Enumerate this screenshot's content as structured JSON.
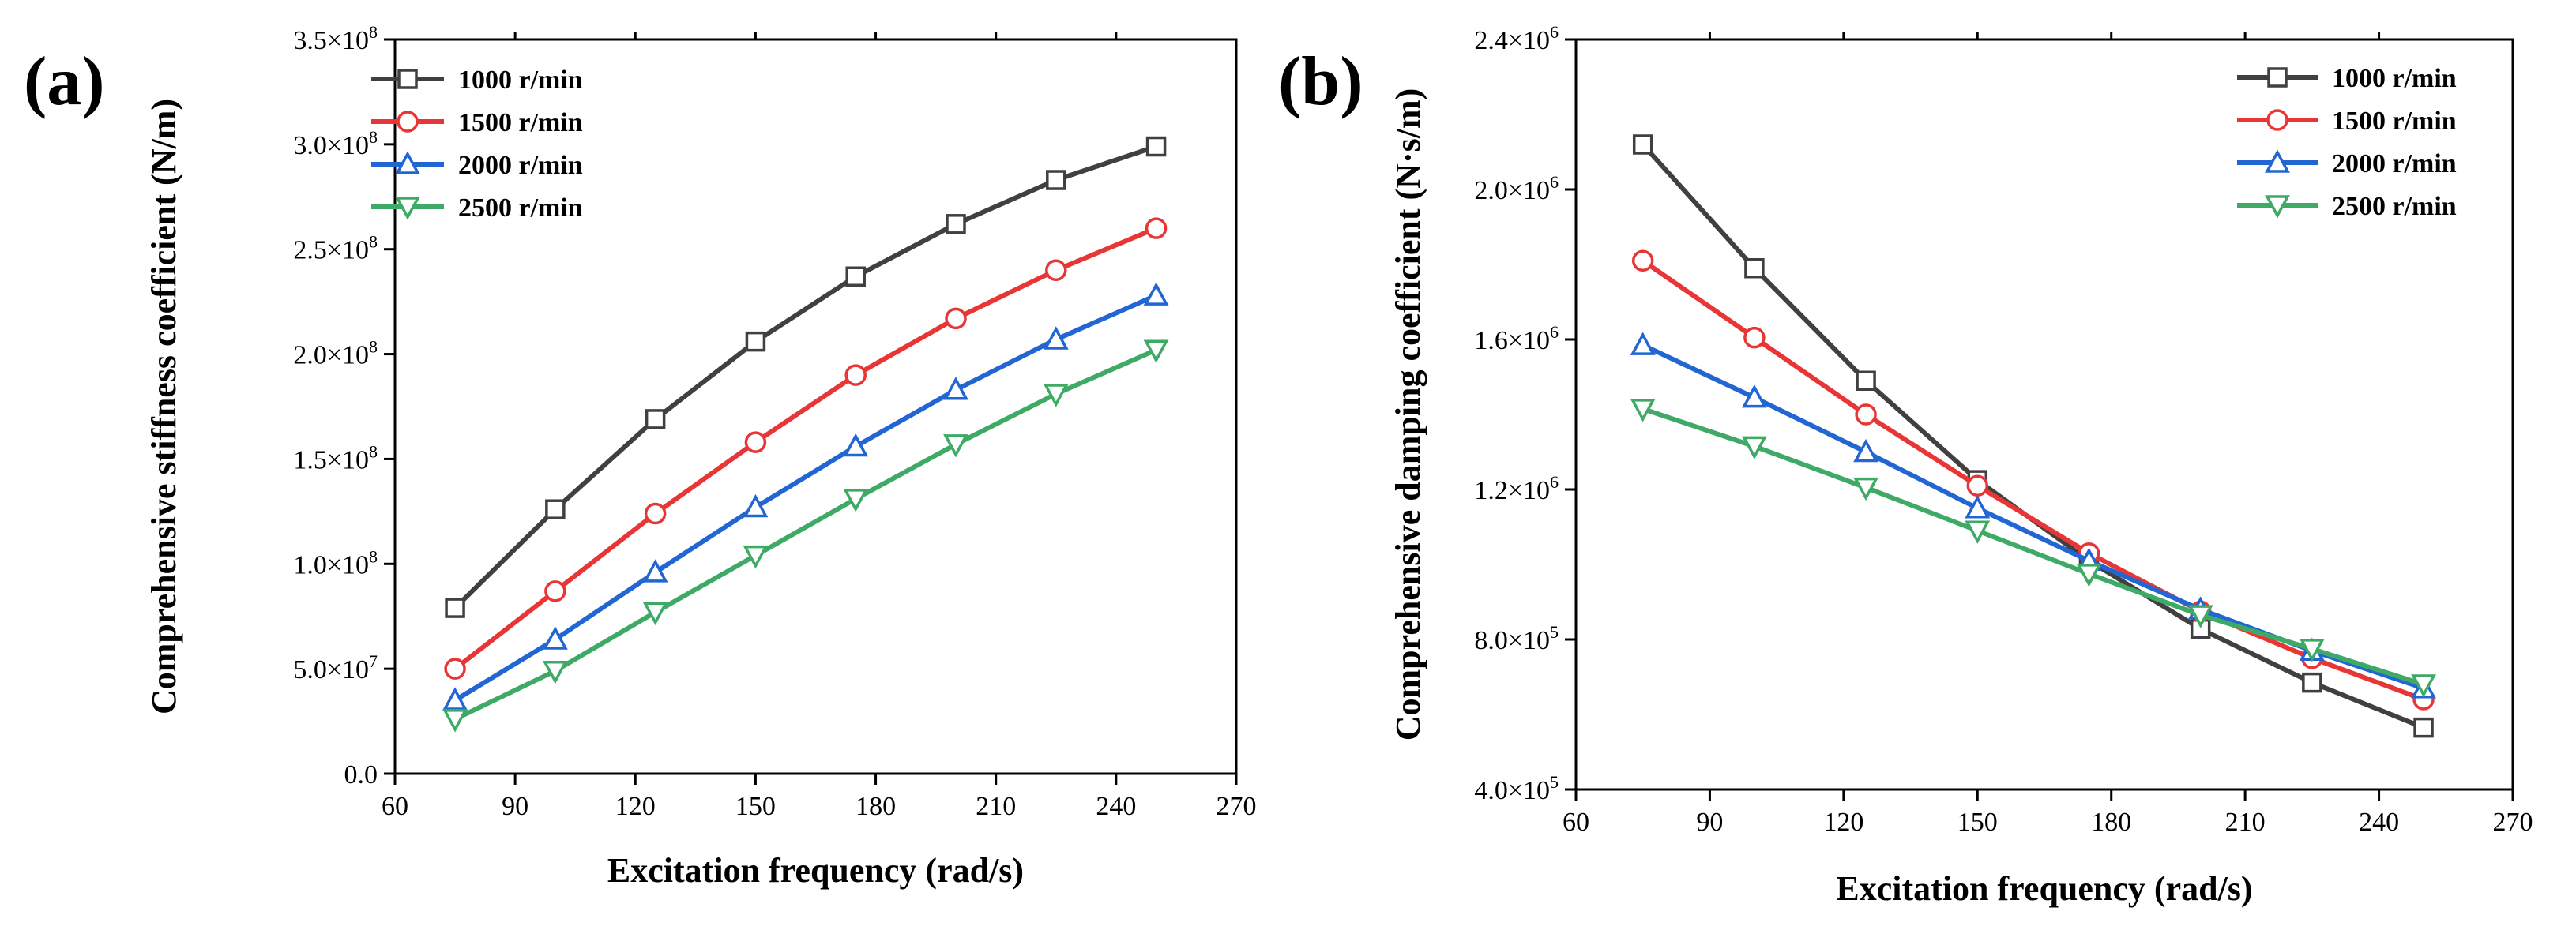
{
  "colors": {
    "1000": "#404040",
    "1500": "#e83535",
    "2000": "#2266d3",
    "2500": "#3faa65"
  },
  "chart_data": [
    {
      "panel_label": "(a)",
      "type": "line",
      "xlabel": "Excitation frequency (rad/s)",
      "ylabel": "Comprehensive stiffness coefficient (N/m)",
      "xlim": [
        60,
        270
      ],
      "ylim": [
        0,
        350000000
      ],
      "xticks": [
        60,
        90,
        120,
        150,
        180,
        210,
        240,
        270
      ],
      "xtick_labels": [
        "60",
        "90",
        "120",
        "150",
        "180",
        "210",
        "240",
        "270"
      ],
      "yticks": [
        {
          "value": 0,
          "mantissa": "0.0",
          "exp": ""
        },
        {
          "value": 50000000,
          "mantissa": "5.0×10",
          "exp": "7"
        },
        {
          "value": 100000000,
          "mantissa": "1.0×10",
          "exp": "8"
        },
        {
          "value": 150000000,
          "mantissa": "1.5×10",
          "exp": "8"
        },
        {
          "value": 200000000,
          "mantissa": "2.0×10",
          "exp": "8"
        },
        {
          "value": 250000000,
          "mantissa": "2.5×10",
          "exp": "8"
        },
        {
          "value": 300000000,
          "mantissa": "3.0×10",
          "exp": "8"
        },
        {
          "value": 350000000,
          "mantissa": "3.5×10",
          "exp": "8"
        }
      ],
      "legend_position": "top-left",
      "grid": false,
      "x": [
        75,
        100,
        125,
        150,
        175,
        200,
        225,
        250
      ],
      "series": [
        {
          "name": "1000 r/min",
          "marker": "square",
          "color_key": "1000",
          "values": [
            79000000,
            126000000,
            169000000,
            206000000,
            237000000,
            262000000,
            283000000,
            299000000
          ]
        },
        {
          "name": "1500 r/min",
          "marker": "circle",
          "color_key": "1500",
          "values": [
            50000000,
            87000000,
            124000000,
            158000000,
            190000000,
            217000000,
            240000000,
            260000000
          ]
        },
        {
          "name": "2000 r/min",
          "marker": "triangle-up",
          "color_key": "2000",
          "values": [
            35000000,
            64000000,
            96000000,
            127000000,
            156000000,
            183000000,
            207000000,
            228000000
          ]
        },
        {
          "name": "2500 r/min",
          "marker": "triangle-down",
          "color_key": "2500",
          "values": [
            26000000,
            49000000,
            77000000,
            104000000,
            131000000,
            157000000,
            181000000,
            202000000
          ]
        }
      ]
    },
    {
      "panel_label": "(b)",
      "type": "line",
      "xlabel": "Excitation frequency (rad/s)",
      "ylabel": "Comprehensive damping coefficient (N·s/m)",
      "xlim": [
        60,
        270
      ],
      "ylim": [
        400000,
        2400000
      ],
      "xticks": [
        60,
        90,
        120,
        150,
        180,
        210,
        240,
        270
      ],
      "xtick_labels": [
        "60",
        "90",
        "120",
        "150",
        "180",
        "210",
        "240",
        "270"
      ],
      "yticks": [
        {
          "value": 400000,
          "mantissa": "4.0×10",
          "exp": "5"
        },
        {
          "value": 800000,
          "mantissa": "8.0×10",
          "exp": "5"
        },
        {
          "value": 1200000,
          "mantissa": "1.2×10",
          "exp": "6"
        },
        {
          "value": 1600000,
          "mantissa": "1.6×10",
          "exp": "6"
        },
        {
          "value": 2000000,
          "mantissa": "2.0×10",
          "exp": "6"
        },
        {
          "value": 2400000,
          "mantissa": "2.4×10",
          "exp": "6"
        }
      ],
      "legend_position": "top-right",
      "grid": false,
      "x": [
        75,
        100,
        125,
        150,
        175,
        200,
        225,
        250
      ],
      "series": [
        {
          "name": "1000 r/min",
          "marker": "square",
          "color_key": "1000",
          "values": [
            2120000,
            1790000,
            1490000,
            1225000,
            1010000,
            828000,
            685000,
            565000
          ]
        },
        {
          "name": "1500 r/min",
          "marker": "circle",
          "color_key": "1500",
          "values": [
            1810000,
            1605000,
            1400000,
            1210000,
            1030000,
            875000,
            750000,
            640000
          ]
        },
        {
          "name": "2000 r/min",
          "marker": "triangle-up",
          "color_key": "2000",
          "values": [
            1585000,
            1445000,
            1300000,
            1150000,
            1010000,
            880000,
            770000,
            670000
          ]
        },
        {
          "name": "2500 r/min",
          "marker": "triangle-down",
          "color_key": "2500",
          "values": [
            1415000,
            1315000,
            1205000,
            1090000,
            975000,
            865000,
            775000,
            680000
          ]
        }
      ]
    }
  ]
}
